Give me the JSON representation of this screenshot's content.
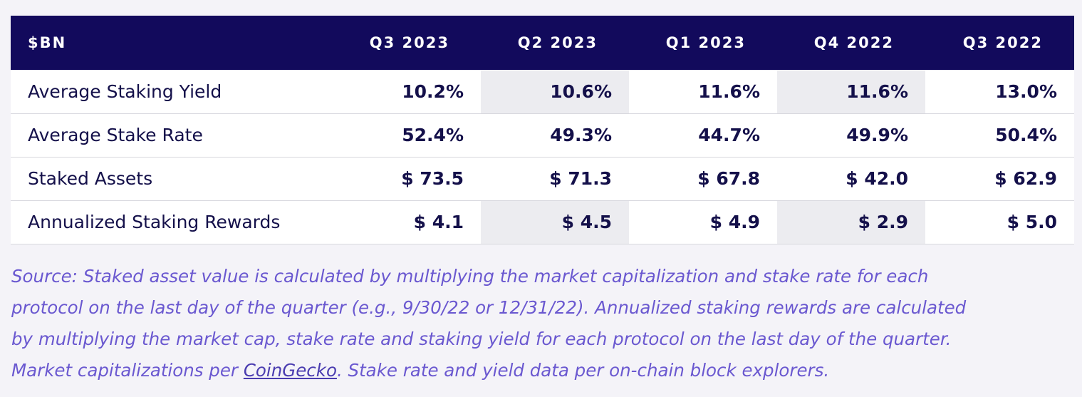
{
  "table": {
    "header": {
      "label": "$BN",
      "columns": [
        "Q3 2023",
        "Q2 2023",
        "Q1 2023",
        "Q4 2022",
        "Q3 2022"
      ]
    },
    "rows": [
      {
        "label": "Average Staking Yield",
        "values": [
          "10.2%",
          "10.6%",
          "11.6%",
          "11.6%",
          "13.0%"
        ]
      },
      {
        "label": "Average Stake Rate",
        "values": [
          "52.4%",
          "49.3%",
          "44.7%",
          "49.9%",
          "50.4%"
        ]
      },
      {
        "label": "Staked Assets",
        "values": [
          "$ 73.5",
          "$ 71.3",
          "$ 67.8",
          "$ 42.0",
          "$ 62.9"
        ]
      },
      {
        "label": "Annualized Staking Rewards",
        "values": [
          "$ 4.1",
          "$ 4.5",
          "$ 4.9",
          "$ 2.9",
          "$ 5.0"
        ]
      }
    ]
  },
  "source_note": {
    "line1": "Source: Staked asset value is calculated by multiplying the market capitalization and stake rate for each",
    "line2": "protocol on the last day of the quarter (e.g., 9/30/22 or 12/31/22). Annualized staking rewards are calculated",
    "line3": "by multiplying the market cap, stake rate and staking yield for each protocol on the last day of the quarter.",
    "line4_before": "Market capitalizations per",
    "link_text": "CoinGecko",
    "line4_after": ". Stake rate and yield data per on-chain block explorers."
  },
  "colors": {
    "header_bg": "#120a5c",
    "shaded_column_bg": "#ececf0",
    "text_dark": "#14104a",
    "source_text": "#6a58d0"
  }
}
